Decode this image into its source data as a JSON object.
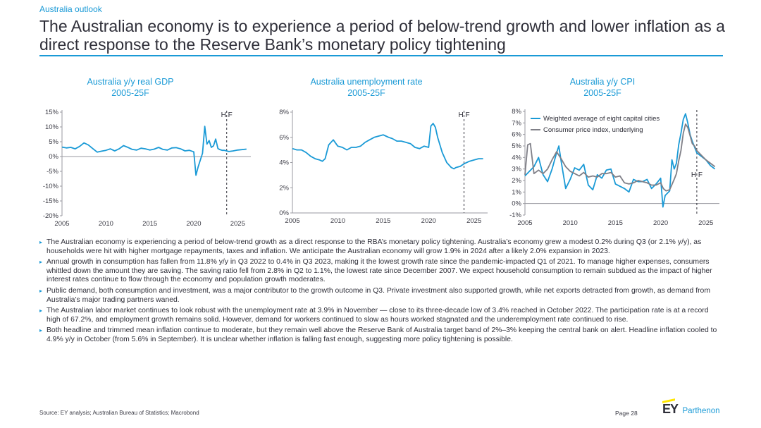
{
  "section_label": "Australia outlook",
  "headline": "The Australian economy is to experience a period of below-trend growth and lower inflation as a direct response to the Reserve Bank’s monetary policy tightening",
  "hf_label": "H F",
  "colors": {
    "accent": "#1a9ad6",
    "cpi_core": "#7f7f87",
    "text": "#2e2e38",
    "logo_yellow": "#ffe600"
  },
  "chart_data": [
    {
      "type": "line",
      "title": "Australia y/y real GDP",
      "subtitle": "2005-25F",
      "x_ticks": [
        "2005",
        "2010",
        "2015",
        "2020",
        "2025"
      ],
      "y_ticks": [
        "15%",
        "10%",
        "5%",
        "0%",
        "-5%",
        "-10%",
        "-15%",
        "-20%"
      ],
      "xlim": [
        2005,
        2026.5
      ],
      "ylim": [
        -20,
        15
      ],
      "forecast_start": 2023.75,
      "series": [
        {
          "values": [
            [
              2005,
              3.2
            ],
            [
              2005.5,
              2.9
            ],
            [
              2006,
              3.1
            ],
            [
              2006.5,
              2.6
            ],
            [
              2007,
              3.4
            ],
            [
              2007.5,
              4.6
            ],
            [
              2008,
              3.9
            ],
            [
              2008.5,
              2.7
            ],
            [
              2009,
              1.5
            ],
            [
              2009.5,
              1.8
            ],
            [
              2010,
              2.1
            ],
            [
              2010.5,
              2.6
            ],
            [
              2011,
              1.9
            ],
            [
              2011.5,
              2.6
            ],
            [
              2012,
              3.7
            ],
            [
              2012.5,
              3.1
            ],
            [
              2013,
              2.4
            ],
            [
              2013.5,
              2.2
            ],
            [
              2014,
              2.8
            ],
            [
              2014.5,
              2.6
            ],
            [
              2015,
              2.2
            ],
            [
              2015.5,
              2.5
            ],
            [
              2016,
              3.1
            ],
            [
              2016.5,
              2.4
            ],
            [
              2017,
              2.2
            ],
            [
              2017.5,
              2.9
            ],
            [
              2018,
              3.0
            ],
            [
              2018.5,
              2.6
            ],
            [
              2019,
              1.9
            ],
            [
              2019.5,
              2.1
            ],
            [
              2020,
              1.6
            ],
            [
              2020.25,
              -6.3
            ],
            [
              2020.5,
              -3.5
            ],
            [
              2020.75,
              -1.2
            ],
            [
              2021,
              1.1
            ],
            [
              2021.25,
              10.2
            ],
            [
              2021.5,
              4.2
            ],
            [
              2021.75,
              5.4
            ],
            [
              2022,
              3.1
            ],
            [
              2022.25,
              3.6
            ],
            [
              2022.5,
              5.9
            ],
            [
              2022.75,
              2.7
            ],
            [
              2023,
              2.3
            ],
            [
              2023.25,
              2.1
            ],
            [
              2023.5,
              2.1
            ],
            [
              2024,
              1.7
            ],
            [
              2024.5,
              1.9
            ],
            [
              2025,
              2.2
            ],
            [
              2026,
              2.5
            ]
          ]
        }
      ]
    },
    {
      "type": "line",
      "title": "Australia unemployment rate",
      "subtitle": "2005-25F",
      "x_ticks": [
        "2005",
        "2010",
        "2015",
        "2020",
        "2025"
      ],
      "y_ticks": [
        "8%",
        "6%",
        "4%",
        "2%",
        "0%"
      ],
      "xlim": [
        2005,
        2026.5
      ],
      "ylim": [
        0,
        8
      ],
      "forecast_start": 2023.9,
      "series": [
        {
          "values": [
            [
              2005,
              5.1
            ],
            [
              2005.5,
              5.0
            ],
            [
              2006,
              5.0
            ],
            [
              2006.5,
              4.8
            ],
            [
              2007,
              4.5
            ],
            [
              2007.5,
              4.3
            ],
            [
              2008,
              4.2
            ],
            [
              2008.3,
              4.1
            ],
            [
              2008.6,
              4.3
            ],
            [
              2009,
              5.4
            ],
            [
              2009.5,
              5.8
            ],
            [
              2010,
              5.3
            ],
            [
              2010.5,
              5.2
            ],
            [
              2011,
              5.0
            ],
            [
              2011.5,
              5.2
            ],
            [
              2012,
              5.2
            ],
            [
              2012.5,
              5.3
            ],
            [
              2013,
              5.6
            ],
            [
              2013.5,
              5.8
            ],
            [
              2014,
              6.0
            ],
            [
              2014.5,
              6.1
            ],
            [
              2015,
              6.2
            ],
            [
              2015.3,
              6.1
            ],
            [
              2015.6,
              6.0
            ],
            [
              2016,
              5.9
            ],
            [
              2016.5,
              5.7
            ],
            [
              2017,
              5.7
            ],
            [
              2017.5,
              5.6
            ],
            [
              2018,
              5.5
            ],
            [
              2018.5,
              5.2
            ],
            [
              2019,
              5.1
            ],
            [
              2019.5,
              5.3
            ],
            [
              2020,
              5.2
            ],
            [
              2020.25,
              6.9
            ],
            [
              2020.5,
              7.1
            ],
            [
              2020.75,
              6.8
            ],
            [
              2021,
              6.0
            ],
            [
              2021.5,
              4.8
            ],
            [
              2022,
              4.0
            ],
            [
              2022.5,
              3.6
            ],
            [
              2022.8,
              3.5
            ],
            [
              2023,
              3.6
            ],
            [
              2023.5,
              3.7
            ],
            [
              2023.9,
              3.9
            ],
            [
              2024.5,
              4.1
            ],
            [
              2025,
              4.2
            ],
            [
              2025.5,
              4.3
            ],
            [
              2026,
              4.3
            ]
          ]
        }
      ]
    },
    {
      "type": "line",
      "title": "Australia y/y CPI",
      "subtitle": "2005-25F",
      "x_ticks": [
        "2005",
        "2010",
        "2015",
        "2020",
        "2025"
      ],
      "y_ticks": [
        "8%",
        "7%",
        "6%",
        "5%",
        "4%",
        "3%",
        "2%",
        "1%",
        "0%",
        "-1%"
      ],
      "xlim": [
        2005,
        2026.5
      ],
      "ylim": [
        -1,
        8
      ],
      "forecast_start": 2024,
      "series": [
        {
          "name": "Weighted average of eight capital cities",
          "values": [
            [
              2005,
              2.4
            ],
            [
              2005.5,
              2.8
            ],
            [
              2006,
              3.2
            ],
            [
              2006.5,
              4.0
            ],
            [
              2007,
              2.5
            ],
            [
              2007.5,
              1.9
            ],
            [
              2008,
              3.0
            ],
            [
              2008.5,
              4.4
            ],
            [
              2008.75,
              5.0
            ],
            [
              2009,
              3.7
            ],
            [
              2009.5,
              1.3
            ],
            [
              2010,
              2.1
            ],
            [
              2010.5,
              3.1
            ],
            [
              2011,
              2.9
            ],
            [
              2011.5,
              3.4
            ],
            [
              2012,
              1.6
            ],
            [
              2012.5,
              1.2
            ],
            [
              2013,
              2.5
            ],
            [
              2013.5,
              2.2
            ],
            [
              2014,
              2.9
            ],
            [
              2014.5,
              3.0
            ],
            [
              2015,
              1.7
            ],
            [
              2015.5,
              1.5
            ],
            [
              2016,
              1.3
            ],
            [
              2016.5,
              1.0
            ],
            [
              2017,
              2.1
            ],
            [
              2017.5,
              1.9
            ],
            [
              2018,
              1.9
            ],
            [
              2018.5,
              2.1
            ],
            [
              2019,
              1.3
            ],
            [
              2019.5,
              1.7
            ],
            [
              2020,
              2.2
            ],
            [
              2020.25,
              -0.3
            ],
            [
              2020.5,
              0.7
            ],
            [
              2021,
              1.1
            ],
            [
              2021.25,
              3.8
            ],
            [
              2021.5,
              3.0
            ],
            [
              2021.75,
              3.5
            ],
            [
              2022,
              5.1
            ],
            [
              2022.25,
              6.1
            ],
            [
              2022.5,
              7.3
            ],
            [
              2022.75,
              7.8
            ],
            [
              2023,
              7.0
            ],
            [
              2023.25,
              6.0
            ],
            [
              2023.5,
              5.4
            ],
            [
              2023.75,
              4.9
            ],
            [
              2024,
              4.4
            ],
            [
              2024.5,
              4.1
            ],
            [
              2025,
              3.8
            ],
            [
              2025.5,
              3.3
            ],
            [
              2026,
              3.0
            ]
          ]
        },
        {
          "name": "Consumer price index, underlying",
          "values": [
            [
              2005,
              2.5
            ],
            [
              2005.3,
              5.1
            ],
            [
              2005.6,
              5.2
            ],
            [
              2006,
              2.6
            ],
            [
              2006.5,
              2.9
            ],
            [
              2007,
              2.6
            ],
            [
              2007.5,
              3.0
            ],
            [
              2008,
              3.8
            ],
            [
              2008.5,
              4.5
            ],
            [
              2009,
              3.9
            ],
            [
              2009.5,
              3.2
            ],
            [
              2010,
              2.8
            ],
            [
              2010.5,
              2.6
            ],
            [
              2011,
              2.4
            ],
            [
              2011.5,
              2.7
            ],
            [
              2012,
              2.3
            ],
            [
              2012.5,
              2.4
            ],
            [
              2013,
              2.3
            ],
            [
              2013.5,
              2.6
            ],
            [
              2014,
              2.6
            ],
            [
              2014.5,
              2.7
            ],
            [
              2015,
              2.3
            ],
            [
              2015.5,
              2.4
            ],
            [
              2016,
              1.8
            ],
            [
              2016.5,
              1.7
            ],
            [
              2017,
              1.8
            ],
            [
              2017.5,
              2.0
            ],
            [
              2018,
              1.9
            ],
            [
              2018.5,
              1.8
            ],
            [
              2019,
              1.6
            ],
            [
              2019.5,
              1.6
            ],
            [
              2020,
              1.8
            ],
            [
              2020.3,
              1.3
            ],
            [
              2020.6,
              1.1
            ],
            [
              2021,
              1.2
            ],
            [
              2021.5,
              2.1
            ],
            [
              2021.75,
              2.6
            ],
            [
              2022,
              3.7
            ],
            [
              2022.25,
              4.6
            ],
            [
              2022.5,
              6.1
            ],
            [
              2022.75,
              6.9
            ],
            [
              2023,
              6.6
            ],
            [
              2023.25,
              5.9
            ],
            [
              2023.5,
              5.2
            ],
            [
              2023.75,
              5.0
            ],
            [
              2024,
              4.6
            ],
            [
              2024.5,
              4.2
            ],
            [
              2025,
              3.8
            ],
            [
              2025.5,
              3.5
            ],
            [
              2026,
              3.2
            ]
          ]
        }
      ],
      "legend": "top-left"
    }
  ],
  "bullets": [
    "The Australian economy is experiencing a period of below-trend growth as a direct response to the RBA’s monetary policy tightening. Australia’s economy grew a modest 0.2% during Q3 (or 2.1% y/y), as households were hit with higher mortgage repayments, taxes and inflation. We anticipate the Australian economy will grow 1.9% in 2024 after a likely 2.0% expansion in 2023.",
    "Annual growth in consumption has fallen from 11.8% y/y in Q3 2022 to 0.4% in Q3 2023, making it the lowest growth rate since the pandemic-impacted Q1 of 2021. To manage higher expenses, consumers whittled down the amount they are saving. The saving ratio fell from 2.8% in Q2 to 1.1%, the lowest rate since December 2007. We expect household consumption to remain subdued as the impact of higher interest rates continue to flow through the economy and population growth moderates.",
    "Public demand, both consumption and investment, was a major contributor to the growth outcome in Q3. Private investment also supported growth, while net exports detracted from growth, as demand from Australia’s major trading partners waned.",
    "The Australian labor market continues to look robust with the unemployment rate at 3.9% in November — close to its three-decade low of 3.4% reached in October 2022. The participation rate is at a record high of 67.2%, and employment growth remains solid. However, demand for workers continued to slow as hours worked stagnated and the underemployment rate continued to rise.",
    "Both headline and trimmed mean inflation continue to moderate, but they remain well above the Reserve Bank of Australia target band of 2%–3% keeping the central bank on alert. Headline inflation cooled to 4.9% y/y in October (from 5.6% in September). It is unclear whether inflation is falling fast enough, suggesting more policy tightening is possible."
  ],
  "footer": {
    "source": "Source:  EY analysis;  Australian  Bureau  of Statistics;  Macrobond",
    "page": "Page 28",
    "logo_ey": "EY",
    "logo_parthenon": "Parthenon"
  }
}
